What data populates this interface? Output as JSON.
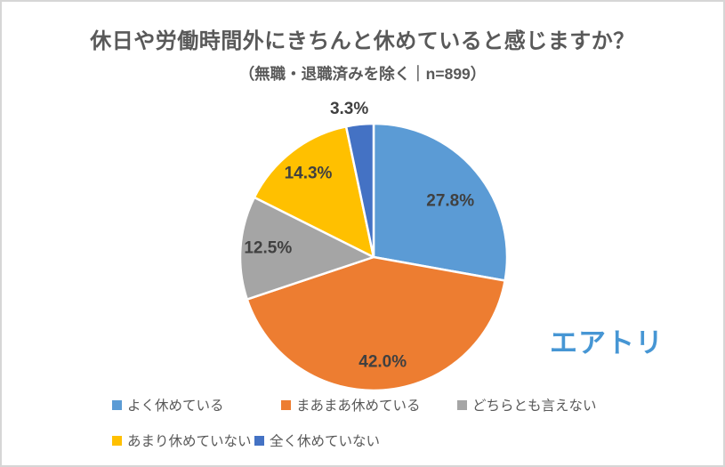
{
  "page": {
    "logo_text": "エアトリ",
    "logo_color": "#4696D4",
    "background_color": "#FFFFFF",
    "border_color": "#D6D6D6",
    "title_color": "#595959",
    "slice_label_color": "#404040"
  },
  "chart_data": {
    "type": "pie",
    "title": "休日や労働時間外にきちんと休めていると感じますか？",
    "subtitle": "（無職・退職済みを除く｜n=899）",
    "unit": "%",
    "start_angle_deg": 0,
    "direction": "clockwise",
    "legend_position": "bottom",
    "slices": [
      {
        "label": "よく休めている",
        "value": 27.8,
        "display": "27.8%",
        "color": "#5B9BD5"
      },
      {
        "label": "まあまあ休めている",
        "value": 42.0,
        "display": "42.0%",
        "color": "#ED7D31"
      },
      {
        "label": "どちらとも言えない",
        "value": 12.5,
        "display": "12.5%",
        "color": "#A5A5A5"
      },
      {
        "label": "あまり休めていない",
        "value": 14.3,
        "display": "14.3%",
        "color": "#FFC000"
      },
      {
        "label": "全く休めていない",
        "value": 3.3,
        "display": "3.3%",
        "color": "#4472C4"
      }
    ],
    "legend_rows": [
      [
        0,
        1,
        2
      ],
      [
        3,
        4
      ]
    ]
  }
}
